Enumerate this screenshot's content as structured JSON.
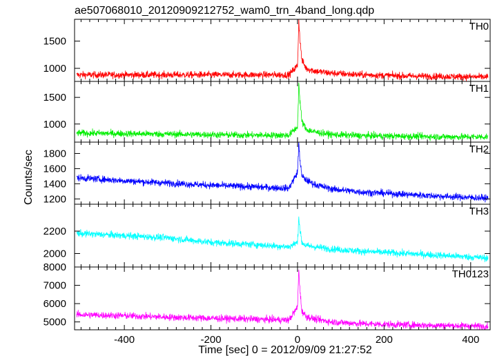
{
  "chart_data": {
    "type": "line",
    "title": "ae507068010_20120909212752_wam0_trn_4band_long.qdp",
    "xlabel": "Time [sec] 0 = 2012/09/09 21:27:52",
    "ylabel": "Counts/sec",
    "xlim": [
      -515,
      445
    ],
    "x_ticks": [
      -400,
      -200,
      0,
      200,
      400
    ],
    "grid": false,
    "legend": "none",
    "panels": [
      {
        "name": "TH0",
        "color": "#ff0000",
        "ylim": [
          760,
          1900
        ],
        "y_ticks": [
          1000,
          1500
        ],
        "series": {
          "x": [
            -510,
            -400,
            -300,
            -200,
            -100,
            -20,
            0,
            3,
            6,
            10,
            20,
            40,
            80,
            150,
            250,
            350,
            440
          ],
          "y": [
            880,
            880,
            880,
            880,
            880,
            880,
            1050,
            1880,
            1500,
            1150,
            1000,
            950,
            910,
            880,
            860,
            850,
            840
          ]
        }
      },
      {
        "name": "TH1",
        "color": "#00ee00",
        "ylim": [
          660,
          1800
        ],
        "y_ticks": [
          1000,
          1500
        ],
        "series": {
          "x": [
            -510,
            -400,
            -300,
            -200,
            -100,
            -20,
            0,
            3,
            6,
            10,
            20,
            40,
            80,
            150,
            250,
            350,
            440
          ],
          "y": [
            830,
            820,
            810,
            800,
            790,
            790,
            950,
            1750,
            1400,
            1050,
            900,
            850,
            800,
            780,
            770,
            760,
            760
          ]
        }
      },
      {
        "name": "TH2",
        "color": "#0000ff",
        "ylim": [
          1130,
          1950
        ],
        "y_ticks": [
          1200,
          1400,
          1600,
          1800
        ],
        "series": {
          "x": [
            -510,
            -400,
            -300,
            -200,
            -100,
            -20,
            0,
            3,
            6,
            10,
            20,
            40,
            80,
            150,
            250,
            350,
            440
          ],
          "y": [
            1480,
            1440,
            1410,
            1380,
            1360,
            1340,
            1550,
            1930,
            1700,
            1500,
            1450,
            1390,
            1330,
            1290,
            1260,
            1230,
            1210
          ]
        }
      },
      {
        "name": "TH3",
        "color": "#00ffff",
        "ylim": [
          1880,
          2440
        ],
        "y_ticks": [
          2000,
          2200
        ],
        "series": {
          "x": [
            -510,
            -400,
            -300,
            -200,
            -100,
            -20,
            0,
            3,
            6,
            10,
            20,
            40,
            80,
            150,
            250,
            350,
            440
          ],
          "y": [
            2180,
            2160,
            2140,
            2100,
            2080,
            2060,
            2100,
            2330,
            2200,
            2100,
            2070,
            2060,
            2040,
            2020,
            2000,
            1980,
            1960
          ]
        }
      },
      {
        "name": "TH0123",
        "color": "#ff00ff",
        "ylim": [
          4570,
          8000
        ],
        "y_ticks": [
          5000,
          6000,
          7000,
          8000
        ],
        "series": {
          "x": [
            -510,
            -400,
            -300,
            -200,
            -100,
            -20,
            0,
            3,
            6,
            10,
            20,
            40,
            80,
            150,
            250,
            350,
            440
          ],
          "y": [
            5400,
            5340,
            5260,
            5200,
            5150,
            5100,
            5800,
            7900,
            6600,
            5600,
            5300,
            5150,
            5000,
            4900,
            4840,
            4800,
            4760
          ]
        }
      }
    ]
  }
}
